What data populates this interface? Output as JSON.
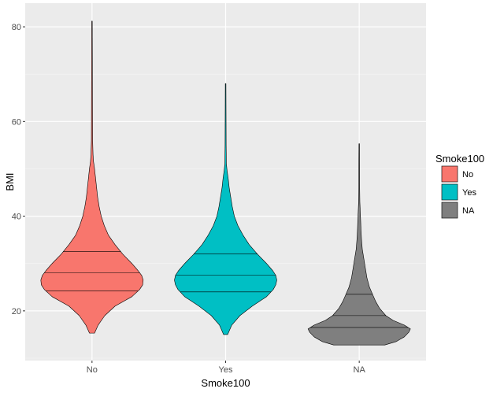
{
  "chart_data": {
    "type": "violin",
    "xlabel": "Smoke100",
    "ylabel": "BMI",
    "categories": [
      "No",
      "Yes",
      "NA"
    ],
    "ylim": [
      9.5,
      85
    ],
    "y_ticks": [
      20,
      40,
      60,
      80
    ],
    "grid": true,
    "legend": {
      "title": "Smoke100",
      "placement": "right",
      "entries": [
        "No",
        "Yes",
        "NA"
      ]
    },
    "series": [
      {
        "name": "No",
        "color": "#F8766D",
        "min": 15.3,
        "max": 81.2,
        "quantiles": [
          24.2,
          28.0,
          32.5
        ],
        "density": [
          [
            15.3,
            0.05
          ],
          [
            17,
            0.12
          ],
          [
            19,
            0.25
          ],
          [
            21,
            0.45
          ],
          [
            23,
            0.78
          ],
          [
            24.5,
            0.93
          ],
          [
            25.5,
            0.99
          ],
          [
            26.5,
            1.0
          ],
          [
            27.5,
            0.97
          ],
          [
            28.5,
            0.9
          ],
          [
            30,
            0.78
          ],
          [
            32,
            0.6
          ],
          [
            34,
            0.45
          ],
          [
            36,
            0.32
          ],
          [
            38,
            0.24
          ],
          [
            40,
            0.18
          ],
          [
            42,
            0.14
          ],
          [
            44,
            0.11
          ],
          [
            46,
            0.09
          ],
          [
            48,
            0.07
          ],
          [
            50,
            0.05
          ],
          [
            51.5,
            0.03
          ],
          [
            53,
            0.02
          ],
          [
            56,
            0.012
          ],
          [
            70,
            0.008
          ],
          [
            81.2,
            0.005
          ]
        ]
      },
      {
        "name": "Yes",
        "color": "#00BFC4",
        "min": 15.0,
        "max": 68.0,
        "quantiles": [
          24.0,
          27.5,
          32.0
        ],
        "density": [
          [
            15,
            0.04
          ],
          [
            17,
            0.12
          ],
          [
            19,
            0.28
          ],
          [
            21,
            0.52
          ],
          [
            23,
            0.8
          ],
          [
            24.5,
            0.93
          ],
          [
            25.5,
            0.98
          ],
          [
            26.5,
            1.0
          ],
          [
            27.5,
            0.98
          ],
          [
            28.5,
            0.92
          ],
          [
            30,
            0.8
          ],
          [
            32,
            0.62
          ],
          [
            34,
            0.46
          ],
          [
            36,
            0.34
          ],
          [
            38,
            0.24
          ],
          [
            40,
            0.17
          ],
          [
            42,
            0.13
          ],
          [
            44,
            0.1
          ],
          [
            46,
            0.07
          ],
          [
            48,
            0.05
          ],
          [
            49.5,
            0.03
          ],
          [
            51,
            0.015
          ],
          [
            55,
            0.01
          ],
          [
            68,
            0.006
          ]
        ]
      },
      {
        "name": "NA",
        "color": "#7F7F7F",
        "min": 12.8,
        "max": 55.3,
        "quantiles": [
          16.5,
          19.0,
          23.5
        ],
        "density": [
          [
            12.8,
            0.5
          ],
          [
            13.5,
            0.72
          ],
          [
            14.5,
            0.88
          ],
          [
            15.5,
            0.97
          ],
          [
            16.2,
            1.0
          ],
          [
            17,
            0.88
          ],
          [
            18,
            0.66
          ],
          [
            19,
            0.52
          ],
          [
            20.5,
            0.4
          ],
          [
            22,
            0.32
          ],
          [
            23.5,
            0.26
          ],
          [
            25,
            0.2
          ],
          [
            27,
            0.15
          ],
          [
            29,
            0.12
          ],
          [
            31,
            0.09
          ],
          [
            33,
            0.06
          ],
          [
            35,
            0.045
          ],
          [
            37,
            0.035
          ],
          [
            39,
            0.028
          ],
          [
            41,
            0.02
          ],
          [
            43,
            0.012
          ],
          [
            46,
            0.008
          ],
          [
            52,
            0.007
          ],
          [
            55.3,
            0.005
          ]
        ]
      }
    ]
  }
}
